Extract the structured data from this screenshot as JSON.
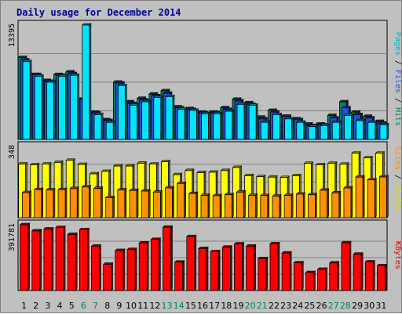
{
  "chart_data": {
    "type": "bar",
    "title": "Daily usage for December 2014",
    "categories": [
      "1",
      "2",
      "3",
      "4",
      "5",
      "6",
      "7",
      "8",
      "9",
      "10",
      "11",
      "12",
      "13",
      "14",
      "15",
      "16",
      "17",
      "18",
      "19",
      "20",
      "21",
      "22",
      "23",
      "24",
      "25",
      "26",
      "27",
      "28",
      "29",
      "30",
      "31"
    ],
    "weekend_days": [
      "6",
      "7",
      "13",
      "14",
      "20",
      "21",
      "27",
      "28"
    ],
    "panels": [
      {
        "id": "traffic",
        "max_label": "13395",
        "ylim": [
          0,
          13395
        ],
        "right_labels": [
          {
            "text": "Pages",
            "color": "#00b0c8"
          },
          {
            "text": " / ",
            "color": "#000000"
          },
          {
            "text": "Files",
            "color": "#2050d8"
          },
          {
            "text": " / ",
            "color": "#000000"
          },
          {
            "text": "Hits",
            "color": "#008060"
          }
        ],
        "series": [
          {
            "name": "Hits",
            "color": "#008060",
            "values": [
              9600,
              7600,
              6900,
              7600,
              7900,
              4700,
              3200,
              2300,
              6700,
              4400,
              4800,
              5300,
              5700,
              3800,
              3600,
              3200,
              3200,
              3700,
              4700,
              4300,
              2600,
              3400,
              2700,
              2400,
              1800,
              1800,
              2800,
              4400,
              3200,
              2700,
              2100
            ]
          },
          {
            "name": "Files",
            "color": "#2050d8",
            "values": [
              9300,
              7600,
              6800,
              7500,
              7700,
              4700,
              3100,
              2200,
              6600,
              4200,
              4600,
              5100,
              5400,
              3700,
              3500,
              3100,
              3100,
              3500,
              4500,
              4100,
              2400,
              3200,
              2700,
              2300,
              1600,
              1700,
              2500,
              3700,
              2900,
              2500,
              1900
            ]
          },
          {
            "name": "Pages",
            "color": "#00e4ff",
            "values": [
              9100,
              7400,
              6700,
              7400,
              7500,
              13395,
              2900,
              2000,
              6300,
              4000,
              4400,
              4900,
              5000,
              3500,
              3400,
              3000,
              3000,
              3300,
              4100,
              4000,
              2000,
              2900,
              2400,
              2000,
              1500,
              1600,
              2000,
              2800,
              2200,
              2000,
              1700
            ]
          }
        ]
      },
      {
        "id": "visits",
        "max_label": "348",
        "ylim": [
          0,
          348
        ],
        "right_labels": [
          {
            "text": "Sites",
            "color": "#ff8c00"
          },
          {
            "text": " / ",
            "color": "#000000"
          },
          {
            "text": "Visits",
            "color": "#d8d800"
          }
        ],
        "series": [
          {
            "name": "Visits",
            "color": "#ffff00",
            "values": [
              262,
              258,
              262,
              270,
              280,
              260,
              214,
              226,
              252,
              252,
              266,
              262,
              273,
              210,
              230,
              220,
              222,
              230,
              245,
              205,
              200,
              198,
              196,
              205,
              265,
              258,
              265,
              261,
              315,
              292,
              315
            ]
          },
          {
            "name": "Sites",
            "color": "#ff9000",
            "values": [
              122,
              137,
              135,
              137,
              142,
              150,
              143,
              98,
              135,
              133,
              130,
              125,
              145,
              167,
              118,
              109,
              107,
              112,
              125,
              109,
              108,
              105,
              109,
              115,
              112,
              134,
              121,
              145,
              198,
              185,
              199
            ]
          }
        ]
      },
      {
        "id": "kbytes",
        "max_label": "391781",
        "ylim": [
          0,
          391781
        ],
        "right_labels": [
          {
            "text": "KBytes",
            "color": "#e00000"
          }
        ],
        "series": [
          {
            "name": "KBytes",
            "color": "#ff0000",
            "values": [
              391781,
              355000,
              366000,
              375000,
              334000,
              362000,
              264000,
              156000,
              238000,
              244000,
              283000,
              304000,
              377000,
              169000,
              321000,
              250000,
              232000,
              258000,
              277000,
              264000,
              190000,
              278000,
              223000,
              165000,
              107000,
              126000,
              164000,
              284000,
              216000,
              170000,
              148000
            ]
          }
        ]
      }
    ],
    "grid": true,
    "legend": "right"
  }
}
